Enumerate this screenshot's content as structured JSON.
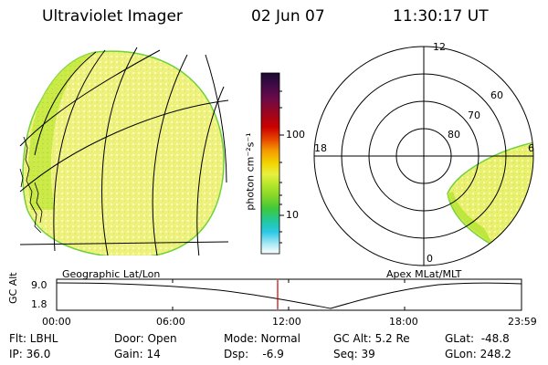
{
  "header": {
    "title": "Ultraviolet Imager",
    "date": "02 Jun 07",
    "time": "11:30:17 UT"
  },
  "colorbar": {
    "label": "photon cm⁻²s⁻¹",
    "tick_100": "100",
    "tick_10": "10",
    "colors_top_to_bottom": [
      "#1a0a2e",
      "#3b0a45",
      "#6b0a4a",
      "#9a0620",
      "#cc0000",
      "#e84a00",
      "#f59a00",
      "#f2d400",
      "#e8f040",
      "#b4e62a",
      "#7fd42a",
      "#3ec83a",
      "#22c8a0",
      "#2bc8e6",
      "#9ee6f2",
      "#ffffff"
    ]
  },
  "geo_map": {
    "label": "Geographic Lat/Lon",
    "fill_color": "#edf27a",
    "edge_color": "#7fd73a"
  },
  "polar": {
    "label": "Apex MLat/MLT",
    "mlt_top": "12",
    "mlt_left": "18",
    "mlt_right": "6",
    "mlt_bottom": "0",
    "lat_60": "60",
    "lat_70": "70",
    "lat_80": "80"
  },
  "altitude_plot": {
    "ylabel": "GC Alt",
    "ytick_top": "9.0",
    "ytick_bottom": "1.8",
    "xticks": [
      "00:00",
      "06:00",
      "12:00",
      "18:00",
      "23:59"
    ],
    "current_time_color": "#cc0000"
  },
  "status": {
    "flt": "Flt: LBHL",
    "ip": "IP: 36.0",
    "door": "Door: Open",
    "gain": "Gain: 14",
    "mode": "Mode: Normal",
    "dsp": "Dsp:    -6.9",
    "gc_alt": "GC Alt: 5.2 Re",
    "seq": "Seq: 39",
    "glat": "GLat:  -48.8",
    "glon": "GLon: 248.2"
  }
}
